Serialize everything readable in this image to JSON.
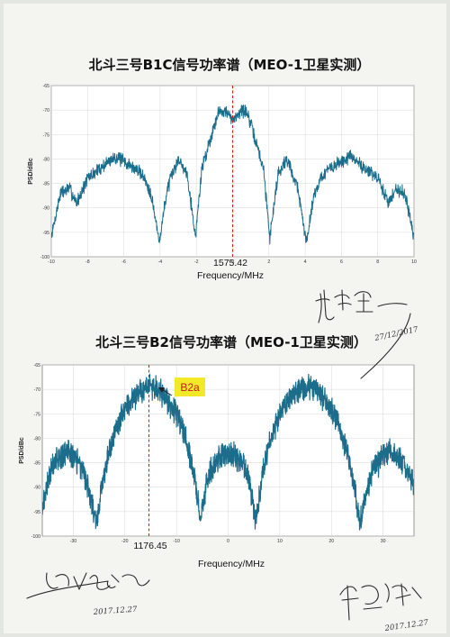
{
  "chart_data": [
    {
      "type": "line",
      "title": "北斗三号B1C信号功率谱（MEO-1卫星实测）",
      "ylabel": "PSD/dBc",
      "xlabel": "Frequency/MHz",
      "xlim": [
        -10,
        10
      ],
      "ylim": [
        -100,
        -65
      ],
      "x_ticks": [
        "-10",
        "-8",
        "-6",
        "-4",
        "-2",
        "0",
        "2",
        "4",
        "6",
        "8",
        "10"
      ],
      "y_ticks": [
        "-65",
        "-70",
        "-75",
        "-80",
        "-85",
        "-90",
        "-95",
        "-100"
      ],
      "grid": true,
      "center_marker": {
        "x": 0,
        "label": "1575.42"
      },
      "series": [
        {
          "x": [
            -10,
            -9.5,
            -9,
            -8.6,
            -8,
            -7,
            -6.5,
            -6,
            -5,
            -4.5,
            -4.05,
            -3.6,
            -3,
            -2.5,
            -2.05,
            -1.7,
            -1.2,
            -0.8,
            -0.5,
            -0.2,
            0,
            0.2,
            0.5,
            0.8,
            1.2,
            1.7,
            2.05,
            2.5,
            3,
            3.6,
            4.05,
            4.5,
            5,
            6,
            6.5,
            7,
            8,
            8.6,
            9,
            9.5,
            10
          ],
          "values": [
            -96,
            -87,
            -86,
            -89,
            -84,
            -81,
            -79.5,
            -80.5,
            -83,
            -87,
            -97,
            -86,
            -80,
            -83,
            -96,
            -82,
            -75.5,
            -70.5,
            -70,
            -71,
            -72.5,
            -71,
            -70,
            -70.5,
            -75.5,
            -82,
            -96,
            -83,
            -80,
            -86,
            -97,
            -87,
            -83,
            -80.5,
            -79.5,
            -81,
            -84,
            -89,
            -86,
            -87,
            -96
          ]
        }
      ]
    },
    {
      "type": "line",
      "title": "北斗三号B2信号功率谱（MEO-1卫星实测）",
      "ylabel": "PSD/dBc",
      "xlabel": "Frequency/MHz",
      "xlim": [
        -36,
        36
      ],
      "ylim": [
        -100,
        -65
      ],
      "x_ticks": [
        "-30",
        "-20",
        "-10",
        "0",
        "10",
        "20",
        "30"
      ],
      "y_ticks": [
        "-65",
        "-70",
        "-75",
        "-80",
        "-85",
        "-90",
        "-95",
        "-100"
      ],
      "grid": true,
      "center_marker": {
        "x": -15.345,
        "label": "1176.45"
      },
      "annotation": "B2a",
      "series": [
        {
          "x": [
            -36,
            -34,
            -31,
            -28,
            -25.5,
            -24,
            -22,
            -20,
            -17,
            -15.3,
            -13,
            -10,
            -8,
            -6.5,
            -5.4,
            -4,
            -2,
            0,
            2,
            4,
            5.4,
            6.5,
            8,
            10,
            13,
            15.3,
            17,
            20,
            22,
            24,
            25.5,
            28,
            31,
            34,
            36
          ],
          "values": [
            -94,
            -85,
            -82.5,
            -86.5,
            -97,
            -87,
            -79,
            -74,
            -70,
            -69.5,
            -70.5,
            -75,
            -81,
            -88,
            -97,
            -88,
            -84,
            -83,
            -84,
            -88,
            -97,
            -88,
            -81,
            -75,
            -70.5,
            -69.5,
            -70,
            -74,
            -79,
            -87,
            -97,
            -86.5,
            -82.5,
            -85,
            -89
          ]
        }
      ]
    }
  ],
  "annotations": {
    "date_1": "27/12/2017",
    "date_2": "2017.12.27",
    "date_3": "2017.12.27"
  }
}
